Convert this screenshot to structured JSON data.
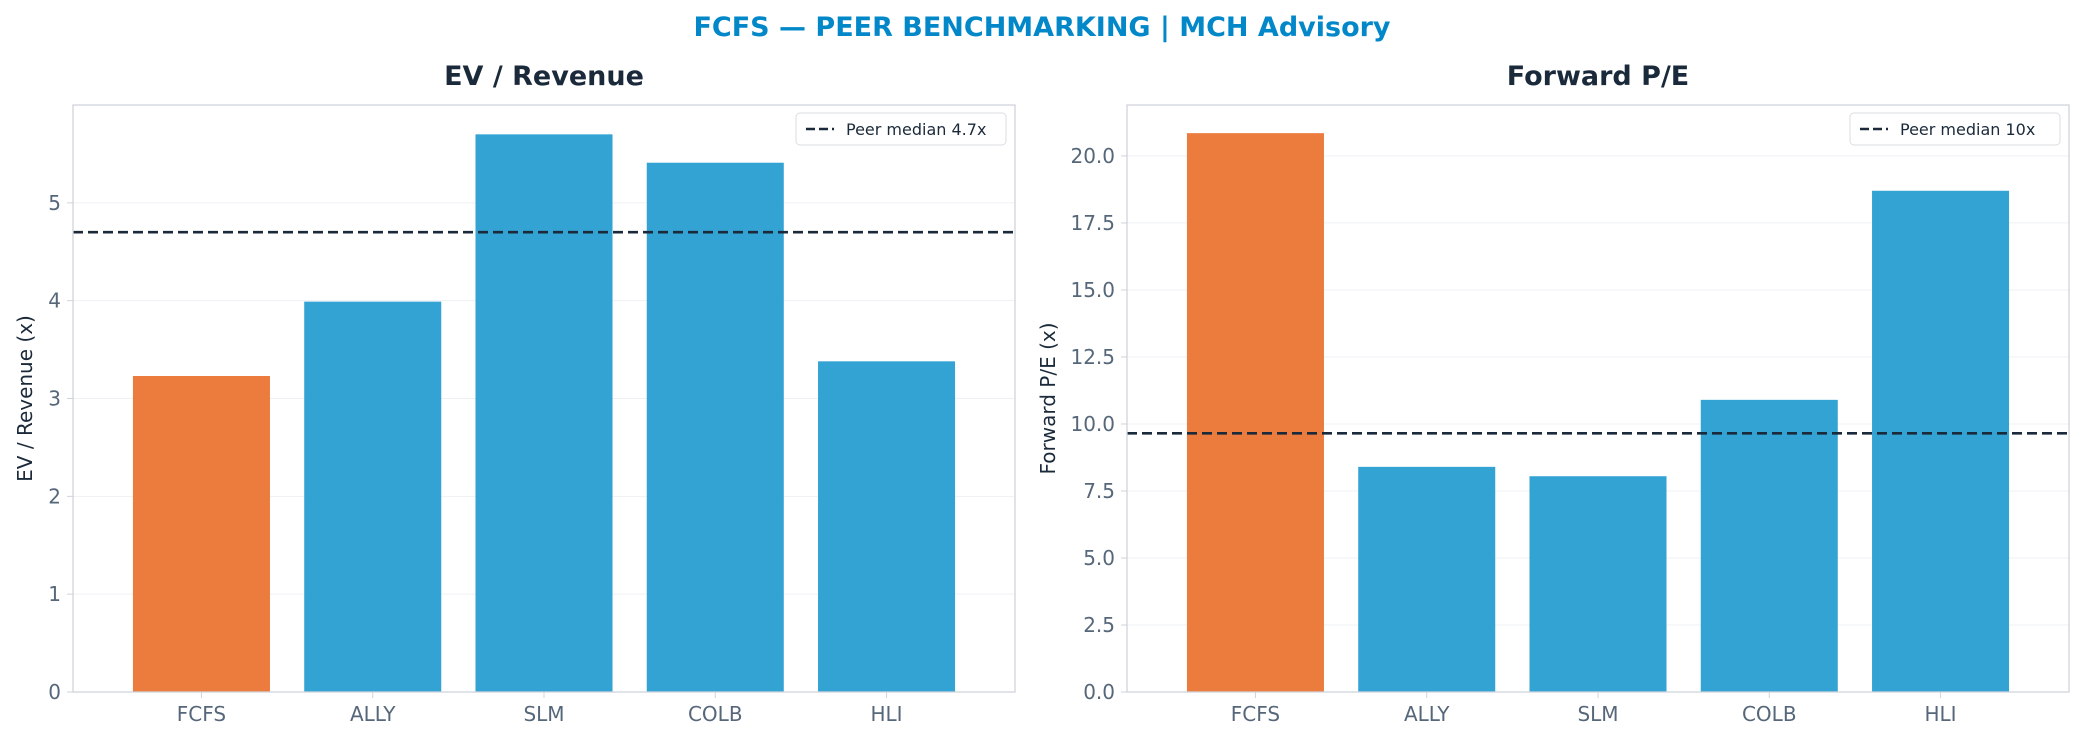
{
  "title": "FCFS — PEER BENCHMARKING | MCH Advisory",
  "colors": {
    "title": "#0288c9",
    "target_bar": "#ec7b3e",
    "peer_bar": "#33a3d4",
    "median_line": "#1b2a3a",
    "axes_border": "#cfd4da",
    "grid": "#eef1f4"
  },
  "chart_data": [
    {
      "type": "bar",
      "title": "EV / Revenue",
      "ylabel": "EV / Revenue (x)",
      "categories": [
        "FCFS",
        "ALLY",
        "SLM",
        "COLB",
        "HLI"
      ],
      "values": [
        3.23,
        3.99,
        5.7,
        5.41,
        3.38
      ],
      "highlight": "FCFS",
      "ylim": [
        0,
        6.0
      ],
      "yticks": [
        0,
        1,
        2,
        3,
        4,
        5
      ],
      "ytick_labels": [
        "0",
        "1",
        "2",
        "3",
        "4",
        "5"
      ],
      "reference_line": {
        "value": 4.7,
        "label": "Peer median 4.7x",
        "style": "dashed"
      },
      "legend": "top-right",
      "grid": true
    },
    {
      "type": "bar",
      "title": "Forward P/E",
      "ylabel": "Forward P/E (x)",
      "categories": [
        "FCFS",
        "ALLY",
        "SLM",
        "COLB",
        "HLI"
      ],
      "values": [
        20.85,
        8.4,
        8.05,
        10.9,
        18.7
      ],
      "highlight": "FCFS",
      "ylim": [
        0,
        21.9
      ],
      "yticks": [
        0,
        2.5,
        5,
        7.5,
        10,
        12.5,
        15,
        17.5,
        20
      ],
      "ytick_labels": [
        "0.0",
        "2.5",
        "5.0",
        "7.5",
        "10.0",
        "12.5",
        "15.0",
        "17.5",
        "20.0"
      ],
      "reference_line": {
        "value": 9.65,
        "label": "Peer median 10x",
        "style": "dashed"
      },
      "legend": "top-right",
      "grid": true
    }
  ]
}
